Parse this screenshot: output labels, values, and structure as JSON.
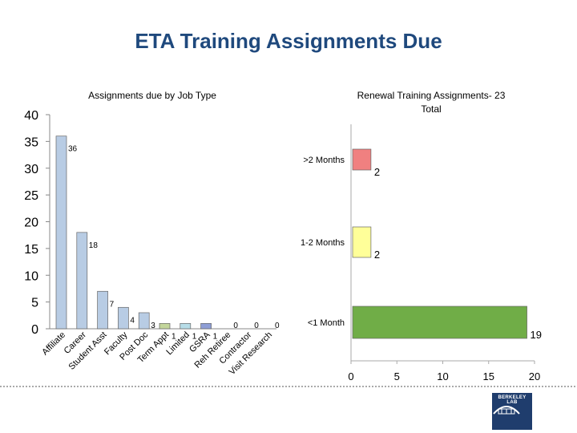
{
  "page": {
    "title": "ETA Training Assignments Due"
  },
  "logo": {
    "text": "BERKELEY LAB"
  },
  "chart_data": [
    {
      "type": "bar",
      "title": "Assignments due by Job Type",
      "categories": [
        "Affiliate",
        "Career",
        "Student Asst",
        "Faculty",
        "Post Doc",
        "Term Appt",
        "Limited",
        "GSRA",
        "Reh Retiree",
        "Contractor",
        "Visit Research"
      ],
      "values": [
        36,
        18,
        7,
        4,
        3,
        1,
        1,
        1,
        0,
        0,
        0
      ],
      "yticks": [
        0,
        5,
        10,
        15,
        20,
        25,
        30,
        35,
        40
      ],
      "colors": [
        "#b8cce4",
        "#b8cce4",
        "#b8cce4",
        "#b8cce4",
        "#b8cce4",
        "#c3d69b",
        "#b7dde8",
        "#8e9ed6",
        "#b8cce4",
        "#b8cce4",
        "#b8cce4"
      ],
      "data_labels": true
    },
    {
      "type": "bar",
      "orientation": "horizontal",
      "title": "Renewal Training Assignments- 23 Total",
      "categories": [
        ">2 Months",
        "1-2 Months",
        "<1 Month"
      ],
      "values": [
        2,
        2,
        19
      ],
      "xticks": [
        0,
        5,
        10,
        15,
        20
      ],
      "xlim": [
        0,
        20
      ],
      "colors": [
        "#f08080",
        "#ffff99",
        "#70ad47"
      ],
      "data_labels": true
    }
  ]
}
